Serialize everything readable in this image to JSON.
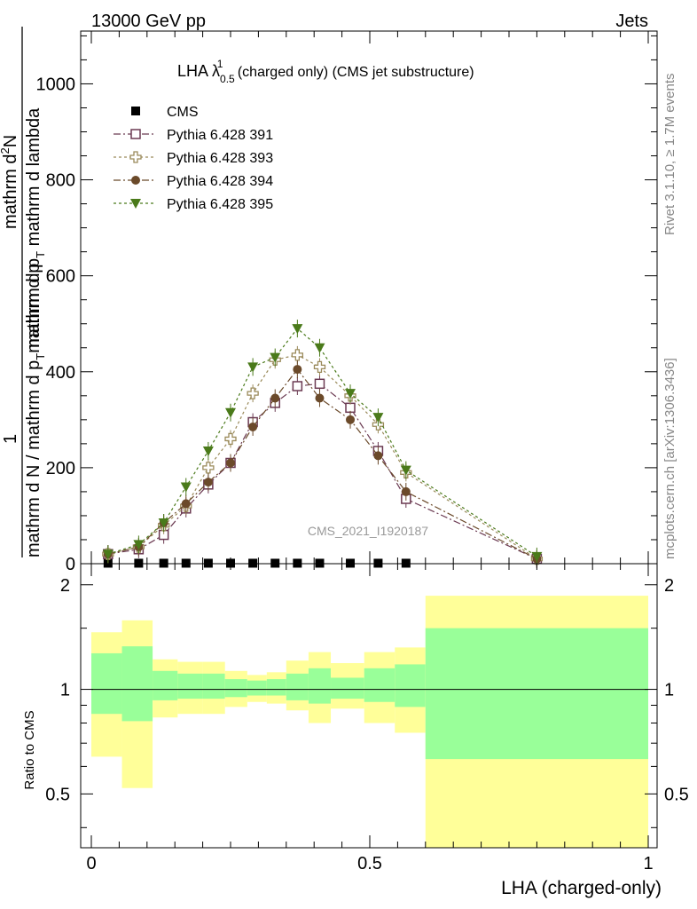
{
  "header": {
    "energy_label": "13000 GeV pp",
    "category_label": "Jets"
  },
  "side_text": {
    "rivet": "Rivet 3.1.10, ≥ 1.7M events",
    "mcplots": "mcplots.cern.ch [arXiv:1306.3436]"
  },
  "chart_data": [
    {
      "type": "scatter",
      "title": {
        "prefix": "LHA λ",
        "sup": "1",
        "sub": "0.5",
        "suffix": " (charged only) (CMS jet substructure)"
      },
      "ylabel": {
        "num_line1": "1",
        "num_line2": "mathrm d N / mathrm d p",
        "num_sub": "T",
        "num_tail": "mathrm d p",
        "den_line1": "mathrm d",
        "den_sup": "2",
        "den_line2": "N",
        "denominator": "mathrm d p",
        "denominator_sub": "T",
        "denominator_tail": " mathrm d lambda",
        "top_fragment": "mathrm d",
        "top_sup": "2",
        "top_N": "N"
      },
      "watermark": "CMS_2021_I1920187",
      "ylim": [
        0,
        1110
      ],
      "xlim": [
        -0.02,
        1.0
      ],
      "yticks": [
        0,
        200,
        400,
        600,
        800,
        1000
      ],
      "legend": [
        {
          "name": "CMS",
          "marker": "square-filled",
          "color": "#000000"
        },
        {
          "name": "Pythia 6.428 391",
          "marker": "square-open",
          "color": "#6b3a52"
        },
        {
          "name": "Pythia 6.428 393",
          "marker": "cross-open",
          "color": "#9a8a5a"
        },
        {
          "name": "Pythia 6.428 394",
          "marker": "circle-filled",
          "color": "#6b4a2a"
        },
        {
          "name": "Pythia 6.428 395",
          "marker": "triangle-down-filled",
          "color": "#4a7a1a"
        }
      ],
      "x": [
        0.03,
        0.085,
        0.13,
        0.17,
        0.21,
        0.25,
        0.29,
        0.33,
        0.37,
        0.41,
        0.465,
        0.515,
        0.565,
        0.8
      ],
      "series": [
        {
          "name": "CMS",
          "values": [
            1,
            1,
            1,
            1,
            1,
            1,
            1,
            1,
            1,
            1,
            1,
            1,
            1,
            null
          ]
        },
        {
          "name": "Pythia 6.428 391",
          "values": [
            20,
            30,
            60,
            115,
            165,
            210,
            295,
            335,
            370,
            375,
            325,
            235,
            135,
            10
          ]
        },
        {
          "name": "Pythia 6.428 393",
          "values": [
            20,
            35,
            80,
            120,
            200,
            260,
            355,
            425,
            435,
            410,
            350,
            290,
            190,
            10
          ]
        },
        {
          "name": "Pythia 6.428 394",
          "values": [
            20,
            35,
            85,
            125,
            170,
            210,
            285,
            345,
            405,
            345,
            300,
            225,
            150,
            10
          ]
        },
        {
          "name": "Pythia 6.428 395",
          "values": [
            20,
            40,
            85,
            160,
            235,
            315,
            410,
            430,
            490,
            450,
            355,
            305,
            195,
            15
          ]
        }
      ]
    },
    {
      "type": "area",
      "ylabel": "Ratio to CMS",
      "xlabel": "LHA (charged-only)",
      "ylim": [
        0.35,
        2.3
      ],
      "xlim": [
        -0.02,
        1.0
      ],
      "yticks": [
        0.5,
        1,
        2
      ],
      "ytick_labels": [
        "0.5",
        "1",
        "2"
      ],
      "xticks": [
        0,
        0.5,
        1
      ],
      "xtick_labels": [
        "0",
        "0.5",
        "1"
      ],
      "bin_edges": [
        0,
        0.055,
        0.11,
        0.155,
        0.2,
        0.24,
        0.28,
        0.315,
        0.35,
        0.39,
        0.43,
        0.49,
        0.545,
        0.6,
        1.0
      ],
      "outer_band": {
        "name": "total uncertainty",
        "color": "#ffff99",
        "low": [
          0.64,
          0.52,
          0.83,
          0.85,
          0.85,
          0.89,
          0.92,
          0.91,
          0.87,
          0.8,
          0.88,
          0.8,
          0.75,
          0.35
        ],
        "high": [
          1.46,
          1.58,
          1.22,
          1.2,
          1.2,
          1.13,
          1.1,
          1.12,
          1.21,
          1.28,
          1.19,
          1.28,
          1.32,
          1.86
        ]
      },
      "inner_band": {
        "name": "stat uncertainty",
        "color": "#99ff99",
        "low": [
          0.85,
          0.81,
          0.93,
          0.94,
          0.94,
          0.95,
          0.96,
          0.96,
          0.93,
          0.91,
          0.94,
          0.92,
          0.89,
          0.63
        ],
        "high": [
          1.27,
          1.33,
          1.13,
          1.11,
          1.11,
          1.07,
          1.06,
          1.07,
          1.11,
          1.15,
          1.08,
          1.15,
          1.18,
          1.5
        ]
      },
      "reference_line": 1
    }
  ]
}
